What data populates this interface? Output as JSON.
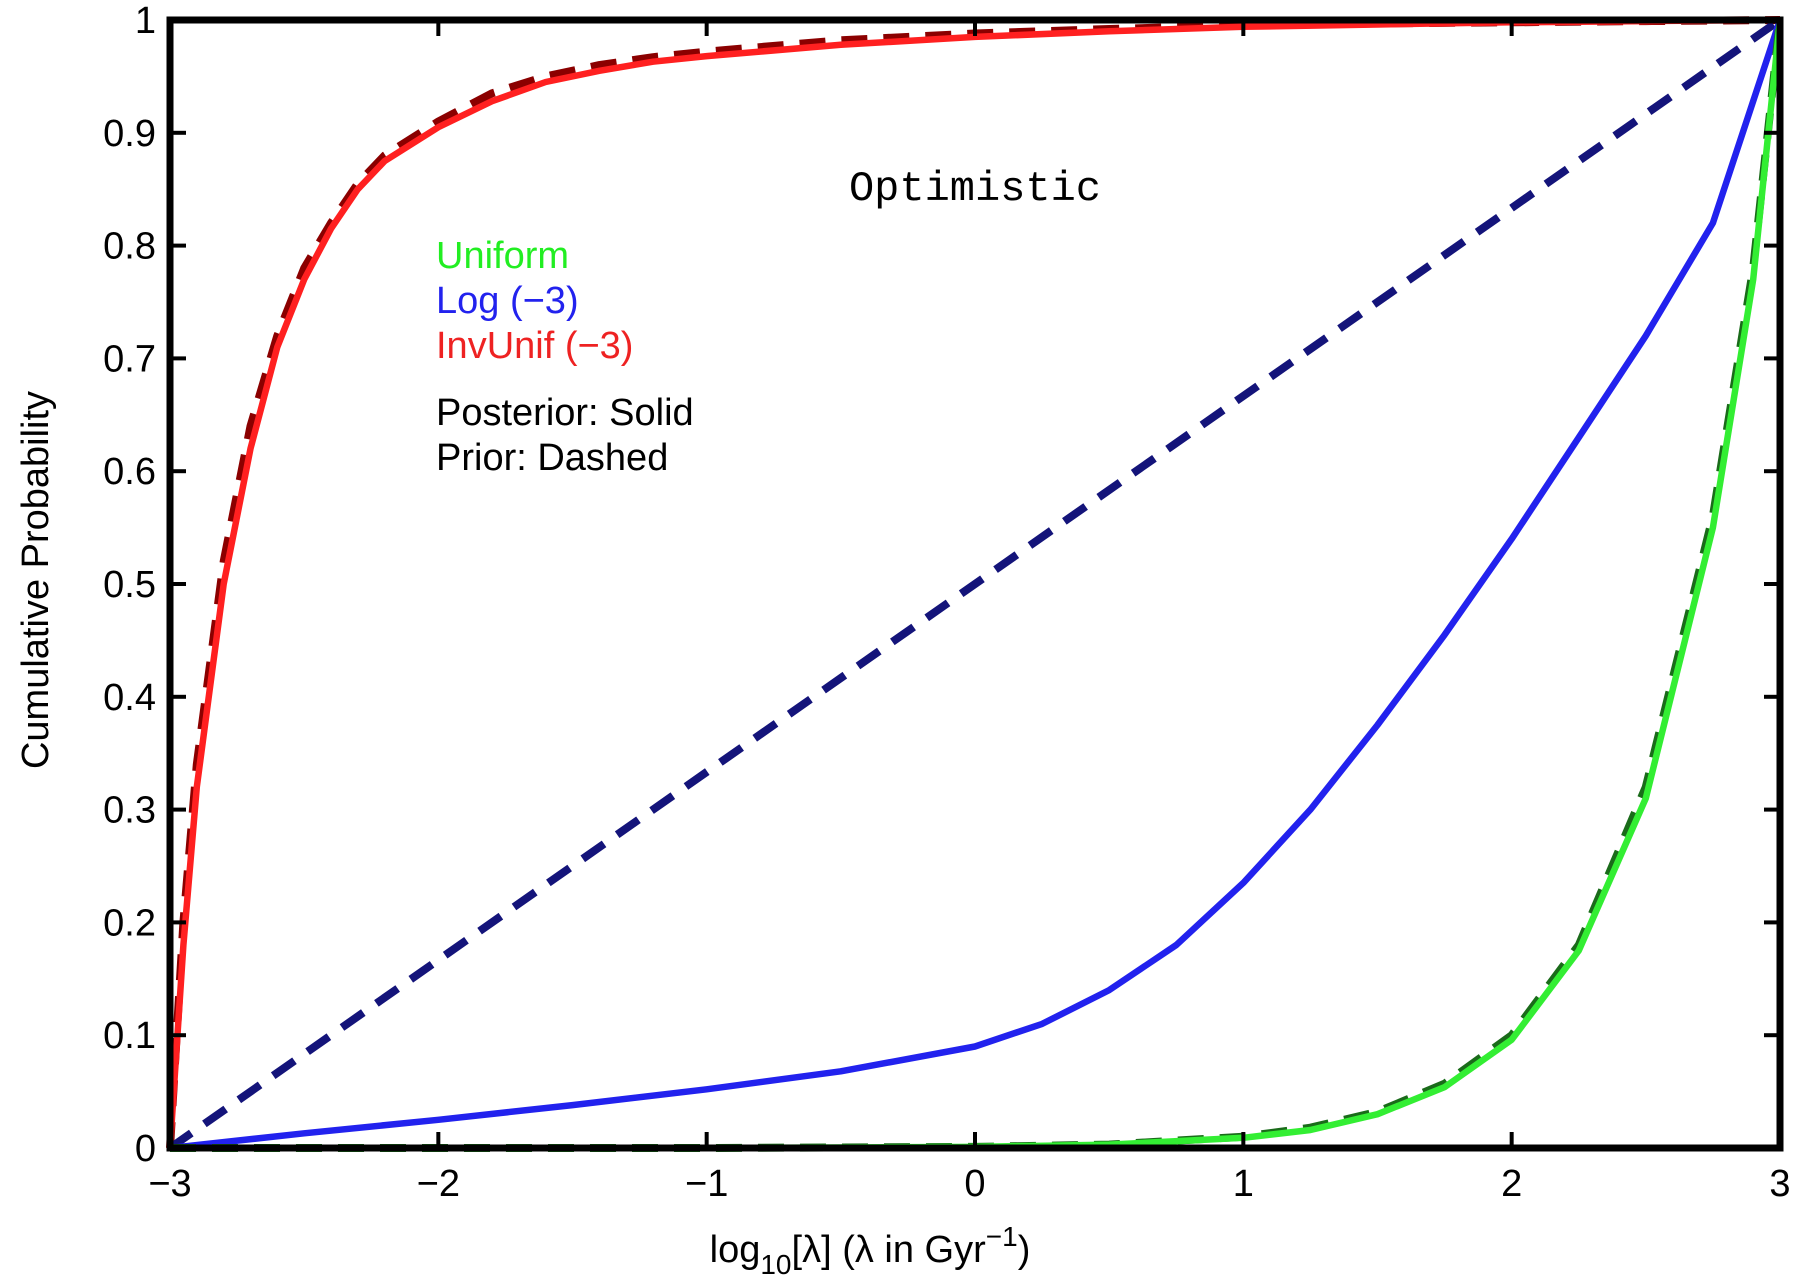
{
  "chart_data": {
    "type": "line",
    "title": "",
    "annotation": "Optimistic",
    "xlabel": {
      "prefix": "log",
      "sub": "10",
      "mid": "[λ]  (λ in Gyr",
      "sup": "−1",
      "suffix": ")"
    },
    "ylabel": "Cumulative Probability",
    "xlim": [
      -3,
      3
    ],
    "ylim": [
      0,
      1
    ],
    "grid": false,
    "x_ticks": [
      -3,
      -2,
      -1,
      0,
      1,
      2,
      3
    ],
    "x_tick_labels": [
      "−3",
      "−2",
      "−1",
      "0",
      "1",
      "2",
      "3"
    ],
    "y_ticks": [
      0,
      0.1,
      0.2,
      0.3,
      0.4,
      0.5,
      0.6,
      0.7,
      0.8,
      0.9,
      1
    ],
    "y_tick_labels": [
      "0",
      "0.1",
      "0.2",
      "0.3",
      "0.4",
      "0.5",
      "0.6",
      "0.7",
      "0.8",
      "0.9",
      "1"
    ],
    "legend": {
      "placement": "upper-left",
      "entries": [
        {
          "label": "Uniform",
          "color": "#22ee22"
        },
        {
          "label": "Log (−3)",
          "color": "#2222ee"
        },
        {
          "label": "InvUnif (−3)",
          "color": "#ee2222"
        }
      ],
      "notes": [
        "Posterior: Solid",
        "Prior: Dashed"
      ]
    },
    "series": [
      {
        "color": "#8b0000",
        "style": "dashed",
        "x": [
          -3.0,
          -2.95,
          -2.9,
          -2.8,
          -2.7,
          -2.6,
          -2.5,
          -2.4,
          -2.3,
          -2.2,
          -2.0,
          -1.8,
          -1.6,
          -1.4,
          -1.2,
          -1.0,
          -0.5,
          0.0,
          0.5,
          1.0,
          1.5,
          2.0,
          2.5,
          3.0
        ],
        "y": [
          0.0,
          0.2,
          0.34,
          0.52,
          0.64,
          0.72,
          0.78,
          0.82,
          0.855,
          0.88,
          0.91,
          0.935,
          0.95,
          0.96,
          0.967,
          0.972,
          0.982,
          0.988,
          0.992,
          0.995,
          0.997,
          0.998,
          0.999,
          1.0
        ]
      },
      {
        "color": "#ff2020",
        "style": "solid",
        "x": [
          -3.0,
          -2.95,
          -2.9,
          -2.8,
          -2.7,
          -2.6,
          -2.5,
          -2.4,
          -2.3,
          -2.2,
          -2.0,
          -1.8,
          -1.6,
          -1.4,
          -1.2,
          -1.0,
          -0.5,
          0.0,
          0.5,
          1.0,
          1.5,
          2.0,
          2.5,
          3.0
        ],
        "y": [
          0.0,
          0.18,
          0.32,
          0.5,
          0.62,
          0.71,
          0.77,
          0.815,
          0.85,
          0.875,
          0.905,
          0.928,
          0.945,
          0.955,
          0.963,
          0.968,
          0.978,
          0.985,
          0.99,
          0.994,
          0.996,
          0.998,
          0.999,
          1.0
        ]
      },
      {
        "color": "#14147a",
        "style": "dashed",
        "x": [
          -3.0,
          3.0
        ],
        "y": [
          0.0,
          1.0
        ]
      },
      {
        "color": "#2222ee",
        "style": "solid",
        "x": [
          -3.0,
          -2.5,
          -2.0,
          -1.5,
          -1.0,
          -0.5,
          0.0,
          0.25,
          0.5,
          0.75,
          1.0,
          1.25,
          1.5,
          1.75,
          2.0,
          2.25,
          2.5,
          2.75,
          3.0
        ],
        "y": [
          0.0,
          0.013,
          0.025,
          0.038,
          0.052,
          0.068,
          0.09,
          0.11,
          0.14,
          0.18,
          0.235,
          0.3,
          0.375,
          0.455,
          0.54,
          0.63,
          0.72,
          0.82,
          1.0
        ]
      },
      {
        "color": "#1a6b1a",
        "style": "dashed",
        "x": [
          -3.0,
          -1.0,
          0.0,
          0.5,
          1.0,
          1.25,
          1.5,
          1.75,
          2.0,
          2.25,
          2.5,
          2.75,
          2.9,
          3.0
        ],
        "y": [
          0.0,
          0.0,
          0.001,
          0.003,
          0.01,
          0.018,
          0.032,
          0.057,
          0.1,
          0.18,
          0.32,
          0.56,
          0.78,
          1.0
        ]
      },
      {
        "color": "#33ee33",
        "style": "solid",
        "x": [
          -3.0,
          -1.0,
          0.0,
          0.5,
          1.0,
          1.25,
          1.5,
          1.75,
          2.0,
          2.25,
          2.5,
          2.75,
          2.9,
          3.0
        ],
        "y": [
          0.0,
          0.0,
          0.001,
          0.003,
          0.009,
          0.016,
          0.03,
          0.054,
          0.096,
          0.175,
          0.31,
          0.55,
          0.77,
          1.0
        ]
      }
    ]
  }
}
